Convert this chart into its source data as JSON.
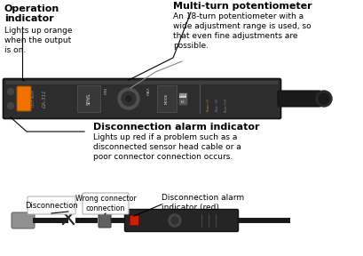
{
  "bg_color": "#ffffff",
  "op_indicator_title": "Operation\nindicator",
  "op_indicator_body": "Lights up orange\nwhen the output\nis on.",
  "multi_turn_title": "Multi-turn potentiometer",
  "multi_turn_body": "An 18-turn potentiometer with a\nwide adjustment range is used, so\nthat even fine adjustments are\npossible.",
  "disconn_title": "Disconnection alarm indicator",
  "disconn_body": "Lights up red if a problem such as a\ndisconnected sensor head cable or a\npoor connector connection occurs.",
  "label_disconnection": "Disconnection",
  "label_wrong_connector": "Wrong connector\nconnection",
  "label_alarm_indicator": "Disconnection alarm\nindicator (red)",
  "device_color": "#2d2d2d",
  "device_border": "#111111",
  "device_top": "#3a3a3a",
  "orange_led": "#f07000",
  "red_led": "#cc2200",
  "cable_dark": "#1a1a1a",
  "sensor_gray": "#909090",
  "connector_gray": "#606060",
  "text_color": "#000000",
  "label_font": 6.5,
  "title_font": 8.0,
  "body_font": 6.5
}
